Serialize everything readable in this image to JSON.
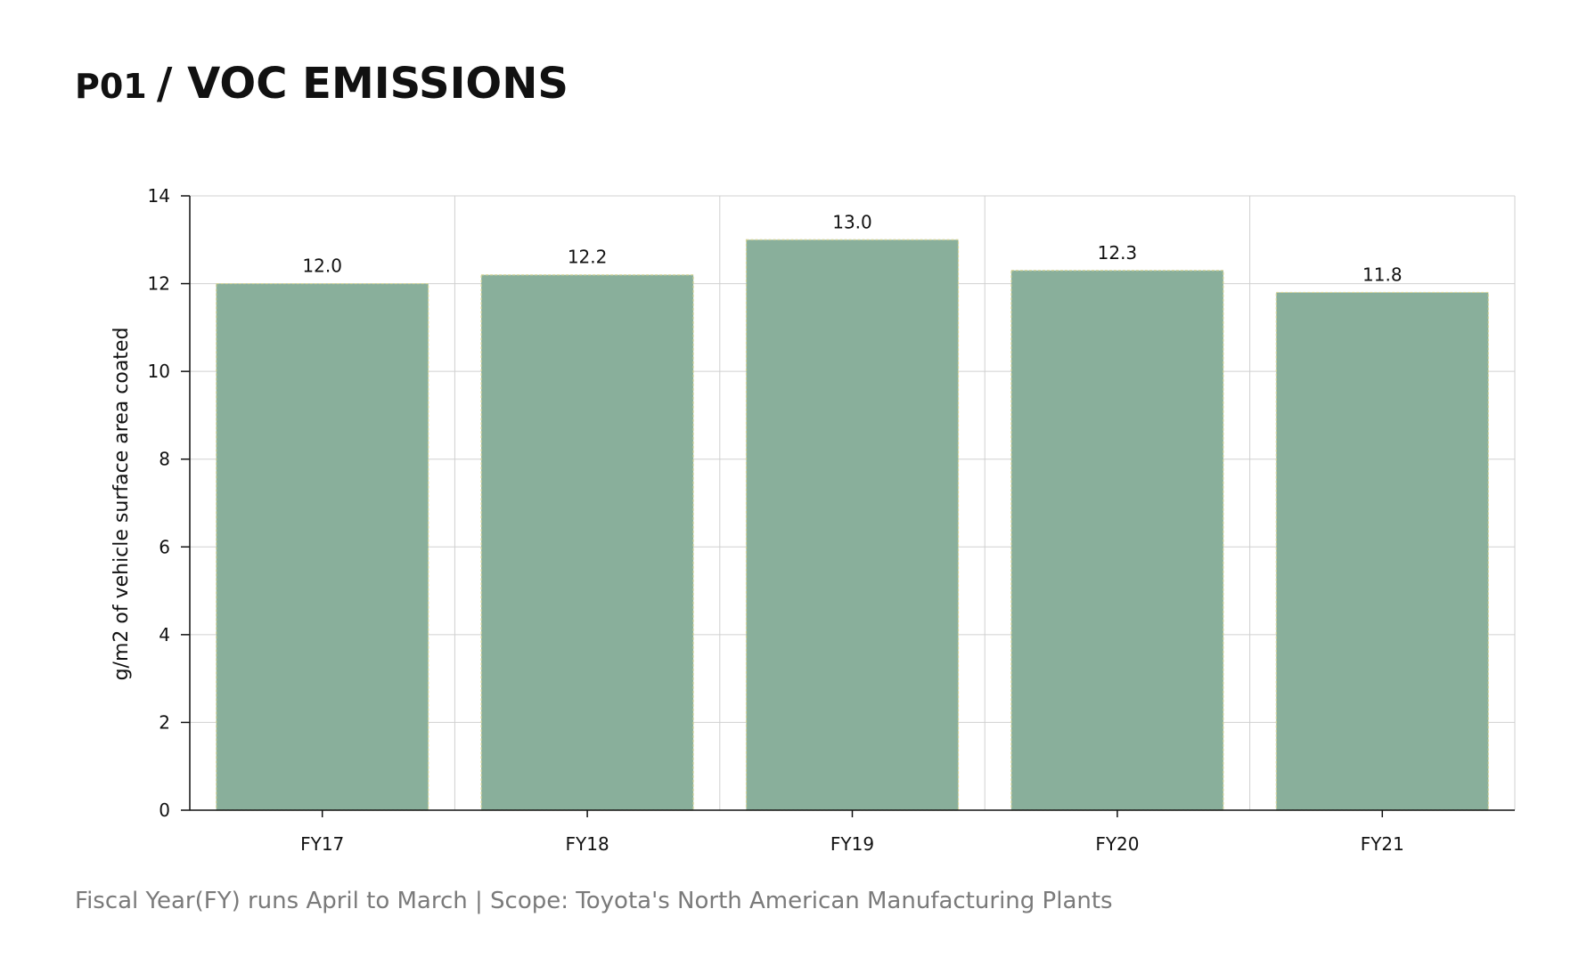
{
  "header": {
    "code": "P01",
    "title": "/ VOC EMISSIONS"
  },
  "footnote": "Fiscal Year(FY) runs April to March | Scope: Toyota's North American Manufacturing Plants",
  "colors": {
    "bar_fill": "#89af9b",
    "bar_border": "#d6d59a",
    "grid": "#d0d0d0",
    "axis": "#111111"
  },
  "chart_data": {
    "type": "bar",
    "categories": [
      "FY17",
      "FY18",
      "FY19",
      "FY20",
      "FY21"
    ],
    "values": [
      12.0,
      12.2,
      13.0,
      12.3,
      11.8
    ],
    "value_labels": [
      "12.0",
      "12.2",
      "13.0",
      "12.3",
      "11.8"
    ],
    "ylabel": "g/m2 of vehicle surface area coated",
    "ylim": [
      0,
      14
    ],
    "yticks": [
      0,
      2,
      4,
      6,
      8,
      10,
      12,
      14
    ],
    "grid": true
  }
}
